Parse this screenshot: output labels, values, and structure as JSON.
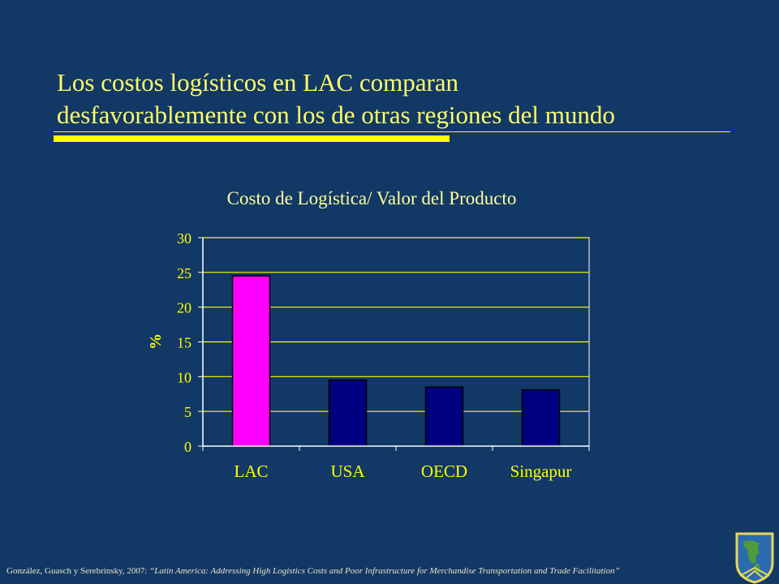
{
  "slide": {
    "title_line1": "Los costos logísticos en LAC comparan",
    "title_line2": "desfavorablemente con los de otras regiones del mundo"
  },
  "chart_data": {
    "type": "bar",
    "title": "Costo de Logística/ Valor del Producto",
    "ylabel": "%",
    "xlabel": "",
    "categories": [
      "LAC",
      "USA",
      "OECD",
      "Singapur"
    ],
    "values": [
      24.5,
      9.5,
      8.5,
      8.1
    ],
    "colors": [
      "#ff00ff",
      "#000080",
      "#000080",
      "#000080"
    ],
    "ylim": [
      0,
      30
    ],
    "yticks": [
      0,
      5,
      10,
      15,
      20,
      25,
      30
    ],
    "grid": true,
    "legend": "none"
  },
  "citation": {
    "authors": "González, Guasch y Serebrinsky, 2007: ",
    "work": "“Latin America: Addressing High Logistics Costs and Poor Infrastructure for Merchandise Transportation and Trade Facilitation”"
  }
}
